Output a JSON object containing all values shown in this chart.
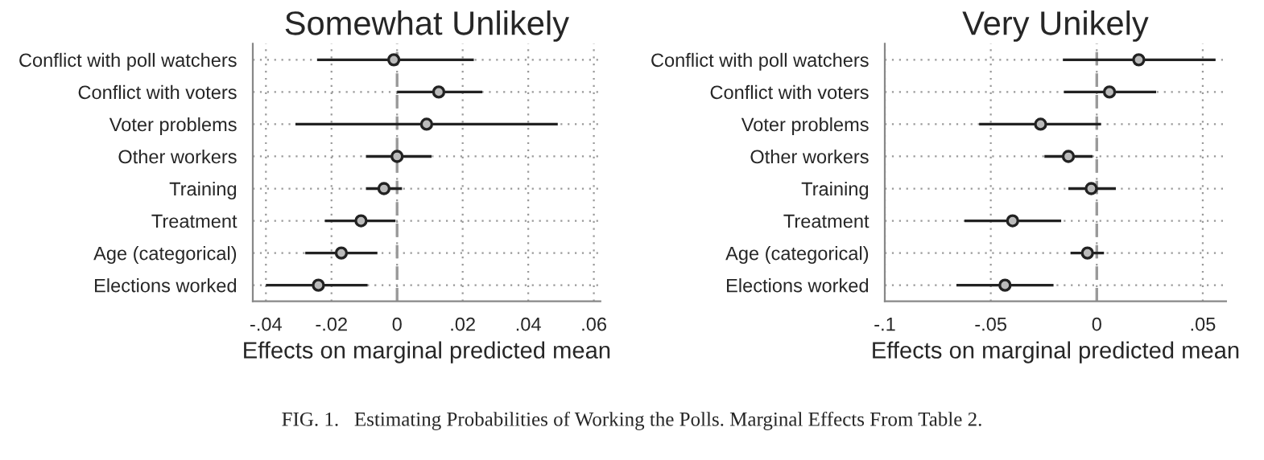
{
  "chart_data": [
    {
      "type": "scatter",
      "orientation": "horizontal",
      "title": "Somewhat Unlikely",
      "xlabel": "Effects on marginal predicted mean",
      "categories": [
        "Conflict with poll watchers",
        "Conflict with voters",
        "Voter problems",
        "Other workers",
        "Training",
        "Treatment",
        "Age (categorical)",
        "Elections worked"
      ],
      "color": "#222222",
      "values": [
        -0.001,
        0.0127,
        0.009,
        0.0,
        -0.004,
        -0.011,
        -0.017,
        -0.024
      ],
      "errors": [
        [
          -0.0244,
          0.0234
        ],
        [
          0.0,
          0.026
        ],
        [
          -0.031,
          0.049
        ],
        [
          -0.0095,
          0.0105
        ],
        [
          -0.0095,
          0.0015
        ],
        [
          -0.022,
          -0.0005
        ],
        [
          -0.028,
          -0.006
        ],
        [
          -0.04,
          -0.009
        ]
      ],
      "xlim": [
        -0.044,
        0.062
      ],
      "xticks": [
        {
          "value": -0.04,
          "label": "-.04"
        },
        {
          "value": -0.02,
          "label": "-.02"
        },
        0,
        {
          "value": 0.02,
          "label": ".02"
        },
        {
          "value": 0.04,
          "label": ".04"
        },
        {
          "value": 0.06,
          "label": ".06"
        }
      ],
      "ref_lines": [
        {
          "axis": "x",
          "value": 0,
          "color": "#999999",
          "line_style": "dashed"
        }
      ],
      "grid": true,
      "marker": "circle",
      "legend": false,
      "annotations": [
        "FIG. 1.   Estimating Probabilities of Working the Polls. Marginal Effects From Table 2."
      ]
    },
    {
      "type": "scatter",
      "orientation": "horizontal",
      "title": "Very Unikely",
      "xlabel": "Effects on marginal predicted mean",
      "categories": [
        "Conflict with poll watchers",
        "Conflict with voters",
        "Voter problems",
        "Other workers",
        "Training",
        "Treatment",
        "Age (categorical)",
        "Elections worked"
      ],
      "color": "#222222",
      "values": [
        0.0198,
        0.006,
        -0.0265,
        -0.0134,
        -0.0026,
        -0.0397,
        -0.0044,
        -0.0433
      ],
      "errors": [
        [
          -0.016,
          0.056
        ],
        [
          -0.0155,
          0.028
        ],
        [
          -0.0555,
          0.002
        ],
        [
          -0.0247,
          -0.002
        ],
        [
          -0.0134,
          0.009
        ],
        [
          -0.0624,
          -0.0168
        ],
        [
          -0.0124,
          0.0034
        ],
        [
          -0.0662,
          -0.0204
        ]
      ],
      "xlim": [
        -0.1,
        0.061
      ],
      "xticks": [
        {
          "value": -0.1,
          "label": "-.1"
        },
        {
          "value": -0.05,
          "label": "-.05"
        },
        0,
        {
          "value": 0.05,
          "label": ".05"
        }
      ],
      "ref_lines": [
        {
          "axis": "x",
          "value": 0,
          "color": "#999999",
          "line_style": "dashed"
        }
      ],
      "grid": true,
      "marker": "circle",
      "legend": false
    }
  ]
}
